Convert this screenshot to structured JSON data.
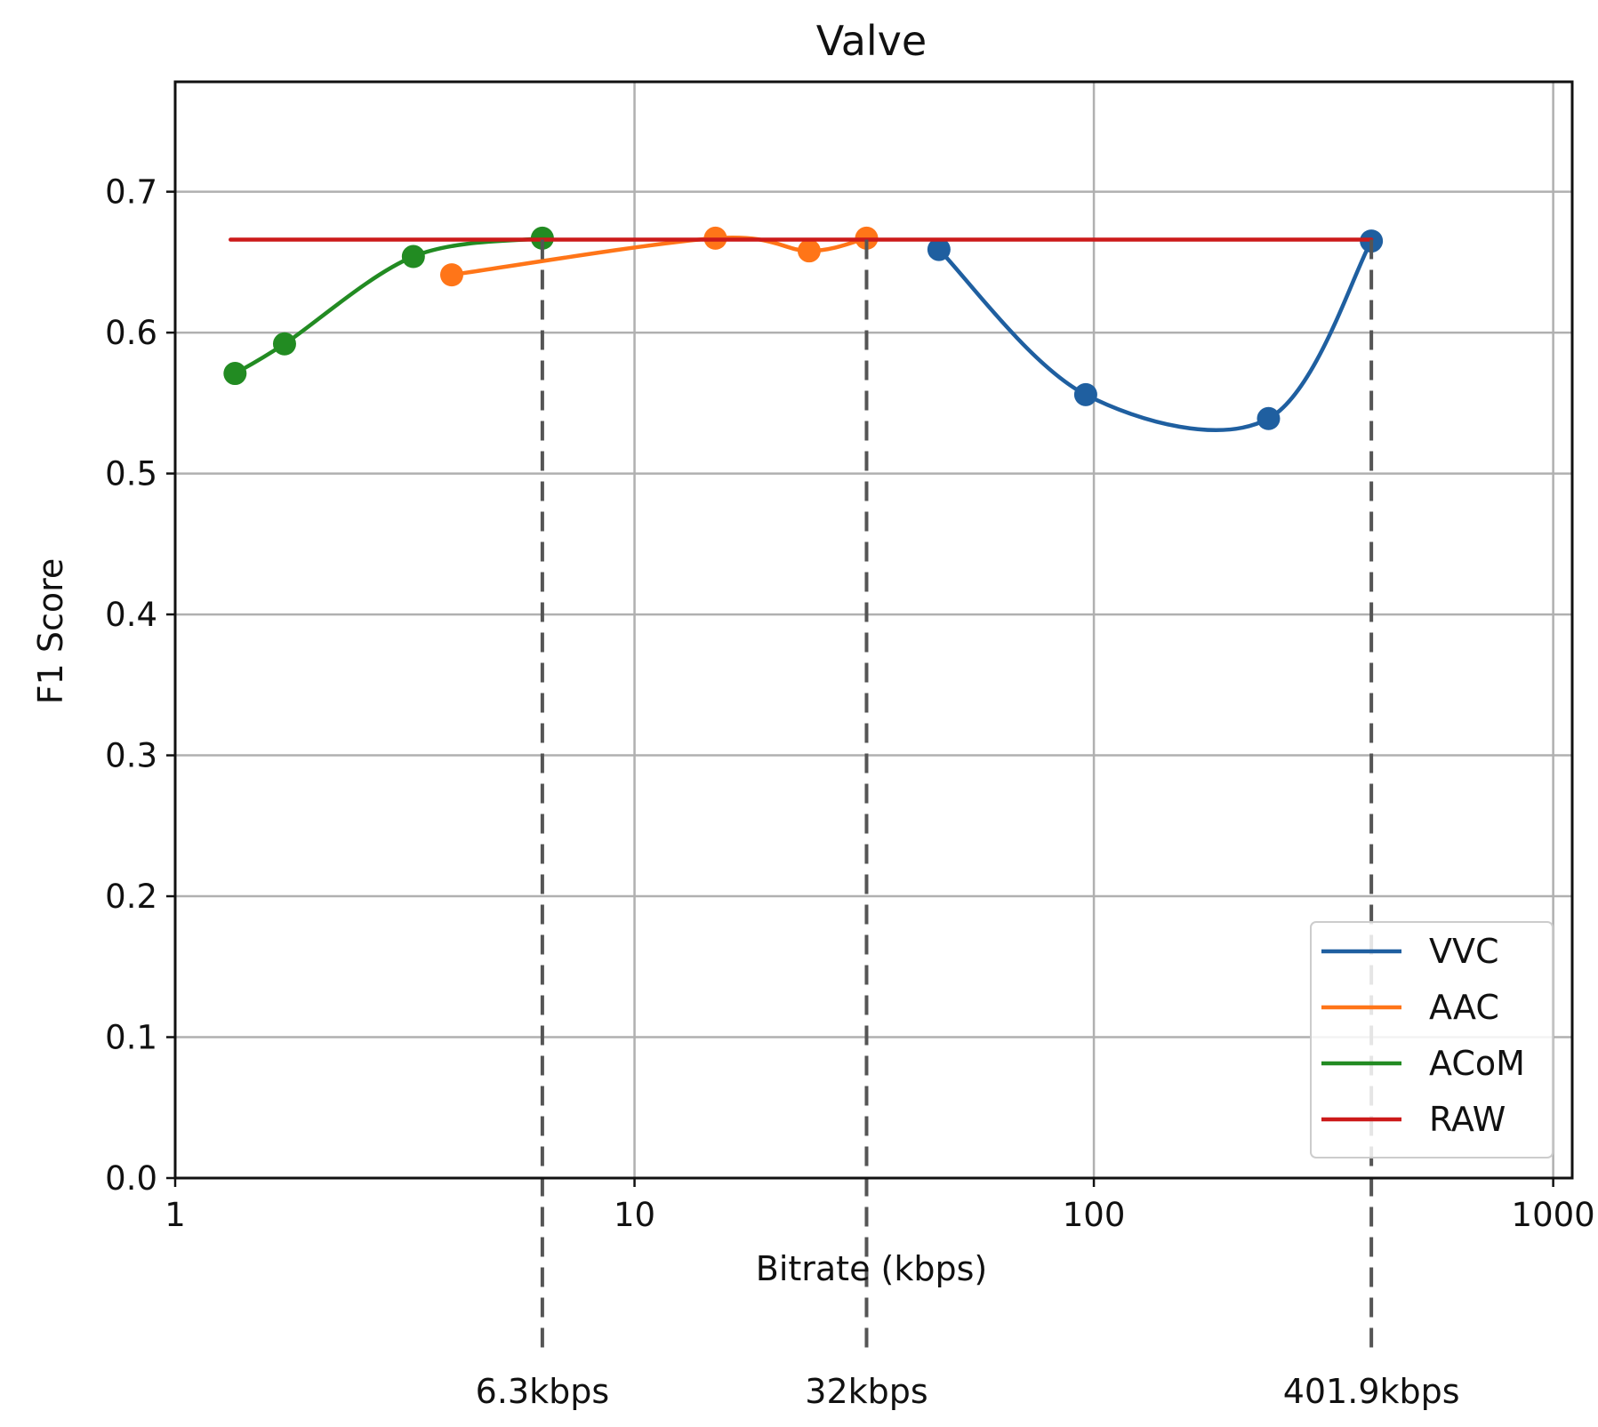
{
  "chart_data": {
    "type": "line",
    "title": "Valve",
    "xlabel": "Bitrate (kbps)",
    "ylabel": "F1 Score",
    "xscale": "log",
    "xlim": [
      1,
      1100
    ],
    "ylim": [
      0,
      0.778
    ],
    "x_ticks": [
      {
        "value": 1,
        "label": "1"
      },
      {
        "value": 10,
        "label": "10"
      },
      {
        "value": 100,
        "label": "100"
      },
      {
        "value": 1000,
        "label": "1000"
      }
    ],
    "y_ticks": [
      {
        "value": 0.0,
        "label": "0.0"
      },
      {
        "value": 0.1,
        "label": "0.1"
      },
      {
        "value": 0.2,
        "label": "0.2"
      },
      {
        "value": 0.3,
        "label": "0.3"
      },
      {
        "value": 0.4,
        "label": "0.4"
      },
      {
        "value": 0.5,
        "label": "0.5"
      },
      {
        "value": 0.6,
        "label": "0.6"
      },
      {
        "value": 0.7,
        "label": "0.7"
      }
    ],
    "grid": true,
    "legend_position": "bottom-right",
    "series": [
      {
        "name": "VVC",
        "color": "#1f5fa0",
        "markers": true,
        "x": [
          46,
          96,
          240,
          401.9
        ],
        "y": [
          0.659,
          0.556,
          0.539,
          0.665
        ]
      },
      {
        "name": "AAC",
        "color": "#ff7518",
        "markers": true,
        "x": [
          4,
          15,
          24,
          32
        ],
        "y": [
          0.641,
          0.667,
          0.658,
          0.667
        ]
      },
      {
        "name": "ACoM",
        "color": "#228b22",
        "markers": true,
        "x": [
          1.35,
          1.73,
          3.3,
          6.3
        ],
        "y": [
          0.571,
          0.592,
          0.654,
          0.667
        ]
      },
      {
        "name": "RAW",
        "color": "#cc1a1a",
        "markers": false,
        "x": [
          1.32,
          401.9
        ],
        "y": [
          0.666,
          0.666
        ]
      }
    ],
    "reference_lines": [
      {
        "x": 6.3,
        "label": "6.3kbps"
      },
      {
        "x": 32,
        "label": "32kbps"
      },
      {
        "x": 401.9,
        "label": "401.9kbps"
      }
    ]
  }
}
